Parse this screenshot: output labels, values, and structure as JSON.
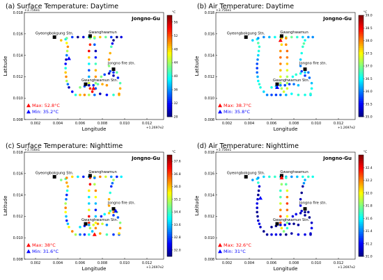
{
  "chart_data": [
    {
      "type": "scatter",
      "title": "(a) Surface Temperature: Daytime",
      "xlabel": "Longitude",
      "ylabel": "Latitude",
      "xlim": [
        0.001,
        0.0135
      ],
      "ylim": [
        0.008,
        0.018
      ],
      "xticks": [
        "0.002",
        "0.004",
        "0.006",
        "0.008",
        "0.010",
        "0.012"
      ],
      "yticks": [
        "0.008",
        "0.010",
        "0.012",
        "0.014",
        "0.016",
        "0.018"
      ],
      "x_offset": "+1.2697e2",
      "y_offset": "+3.756e1",
      "district": "Jongno-Gu",
      "landmarks": [
        {
          "name": "Gyeongbokgung Stn.",
          "x": 0.0037,
          "y": 0.0157
        },
        {
          "name": "Gwanghwamun",
          "x": 0.0069,
          "y": 0.0158
        },
        {
          "name": "Jongno fire stn.",
          "x": 0.009,
          "y": 0.0127
        },
        {
          "name": "Gwanghwamun Stn.",
          "x": 0.0065,
          "y": 0.0113
        }
      ],
      "max_label": "Max: 52.8°C",
      "min_label": "Min: 35.2°C",
      "max_point": {
        "x": 0.0072,
        "y": 0.0109
      },
      "min_point": {
        "x": 0.005,
        "y": 0.0137
      },
      "colorbar": {
        "unit": "°C",
        "min": 28,
        "max": 58,
        "ticks": [
          "28",
          "32",
          "36",
          "40",
          "44",
          "48",
          "52",
          "56"
        ]
      }
    },
    {
      "type": "scatter",
      "title": "(b) Air Temperature: Daytime",
      "xlabel": "Longitude",
      "ylabel": "Latitude",
      "xlim": [
        0.001,
        0.0135
      ],
      "ylim": [
        0.008,
        0.018
      ],
      "xticks": [
        "0.002",
        "0.004",
        "0.006",
        "0.008",
        "0.010",
        "0.012"
      ],
      "yticks": [
        "0.008",
        "0.010",
        "0.012",
        "0.014",
        "0.016",
        "0.018"
      ],
      "x_offset": "+1.2697e2",
      "y_offset": "+3.756e1",
      "district": "Jongno-Gu",
      "landmarks": [
        {
          "name": "Gyeongbokgung Stn.",
          "x": 0.0037,
          "y": 0.0157
        },
        {
          "name": "Gwanghwamun",
          "x": 0.0069,
          "y": 0.0158
        },
        {
          "name": "Jongno fire stn.",
          "x": 0.009,
          "y": 0.0127
        },
        {
          "name": "Gwanghwamun Stn.",
          "x": 0.0065,
          "y": 0.0113
        }
      ],
      "max_label": "Max: 38.7°C",
      "min_label": "Min: 35.8°C",
      "max_point": {
        "x": 0.0068,
        "y": 0.0154
      },
      "min_point": {
        "x": 0.0065,
        "y": 0.011
      },
      "colorbar": {
        "unit": "°C",
        "min": 35,
        "max": 39,
        "ticks": [
          "35.0",
          "35.5",
          "36.0",
          "36.5",
          "37.0",
          "37.5",
          "38.0",
          "38.5",
          "39.0"
        ]
      }
    },
    {
      "type": "scatter",
      "title": "(c) Surface Temperature: Nighttime",
      "xlabel": "Longitude",
      "ylabel": "Latitude",
      "xlim": [
        0.001,
        0.0135
      ],
      "ylim": [
        0.008,
        0.018
      ],
      "xticks": [
        "0.002",
        "0.004",
        "0.006",
        "0.008",
        "0.010",
        "0.012"
      ],
      "yticks": [
        "0.008",
        "0.010",
        "0.012",
        "0.014",
        "0.016",
        "0.018"
      ],
      "x_offset": "+1.2697e2",
      "y_offset": "+3.756e1",
      "district": "Jongno-Gu",
      "landmarks": [
        {
          "name": "Gyeongbokgung Stn.",
          "x": 0.0037,
          "y": 0.0157
        },
        {
          "name": "Gwanghwamun",
          "x": 0.0069,
          "y": 0.0158
        },
        {
          "name": "Jongno fire stn.",
          "x": 0.009,
          "y": 0.0127
        },
        {
          "name": "Gwanghwamun Stn.",
          "x": 0.0065,
          "y": 0.0113
        }
      ],
      "max_label": "Max: 38°C",
      "min_label": "Min: 31.6°C",
      "max_point": {
        "x": 0.0073,
        "y": 0.0103
      },
      "min_point": {
        "x": 0.0092,
        "y": 0.0125
      },
      "colorbar": {
        "unit": "°C",
        "min": 31.6,
        "max": 38.0,
        "ticks": [
          "32.0",
          "32.8",
          "33.6",
          "34.4",
          "35.2",
          "36.0",
          "36.8",
          "37.6"
        ]
      }
    },
    {
      "type": "scatter",
      "title": "(d) Air Temperature: Nighttime",
      "xlabel": "Longitude",
      "ylabel": "Latitude",
      "xlim": [
        0.001,
        0.0135
      ],
      "ylim": [
        0.008,
        0.018
      ],
      "xticks": [
        "0.002",
        "0.004",
        "0.006",
        "0.008",
        "0.010",
        "0.012"
      ],
      "yticks": [
        "0.008",
        "0.010",
        "0.012",
        "0.014",
        "0.016",
        "0.018"
      ],
      "x_offset": "+1.2697e2",
      "y_offset": "+3.756e1",
      "district": "Jongno-Gu",
      "landmarks": [
        {
          "name": "Gyeongbokgung Stn.",
          "x": 0.0037,
          "y": 0.0157
        },
        {
          "name": "Gwanghwamun",
          "x": 0.0069,
          "y": 0.0158
        },
        {
          "name": "Jongno fire stn.",
          "x": 0.009,
          "y": 0.0127
        },
        {
          "name": "Gwanghwamun Stn.",
          "x": 0.0065,
          "y": 0.0113
        }
      ],
      "max_label": "Max: 32.6°C",
      "min_label": "Min:   31°C",
      "max_point": {
        "x": 0.0069,
        "y": 0.0156
      },
      "min_point": {
        "x": 0.005,
        "y": 0.0137
      },
      "colorbar": {
        "unit": "°C",
        "min": 31,
        "max": 32.6,
        "ticks": [
          "31.0",
          "31.2",
          "31.4",
          "31.6",
          "31.8",
          "32.0",
          "32.2",
          "32.4"
        ]
      }
    }
  ]
}
